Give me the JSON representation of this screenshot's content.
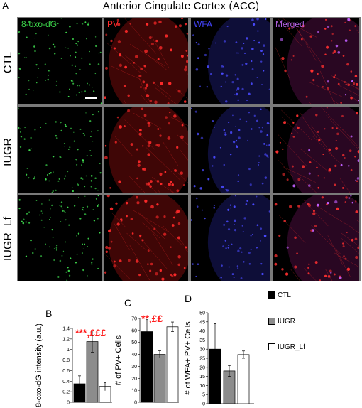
{
  "figure": {
    "panel_a_letter": "A",
    "title": "Anterior Cingulate Cortex (ACC)"
  },
  "grid": {
    "rows": [
      "CTL",
      "IUGR",
      "IUGR_Lf"
    ],
    "columns": [
      {
        "label": "8-oxo-dG",
        "color": "#3bd44a"
      },
      {
        "label": "PV",
        "color": "#ff2a2a"
      },
      {
        "label": "WFA",
        "color": "#4444ff"
      },
      {
        "label": "Merged",
        "color": "#b060e0"
      }
    ]
  },
  "legend": {
    "items": [
      {
        "label": "CTL",
        "color": "#000000"
      },
      {
        "label": "IUGR",
        "color": "#8c8c8c"
      },
      {
        "label": "IUGR_Lf",
        "color": "#ffffff"
      }
    ]
  },
  "chart_data": [
    {
      "type": "bar",
      "panel": "B",
      "categories": [
        "CTL",
        "IUGR",
        "IUGR_Lf"
      ],
      "values": [
        0.35,
        1.15,
        0.3
      ],
      "errors": [
        0.15,
        0.2,
        0.07
      ],
      "colors": [
        "#000000",
        "#8c8c8c",
        "#ffffff"
      ],
      "ylabel": "8-oxo-dG intensity (a.u.)",
      "ylim": [
        0,
        1.4
      ],
      "yticks": [
        "0",
        "0.2",
        "0.4",
        "0.6",
        "0.8",
        "1",
        "1.2",
        "1.4"
      ],
      "significance": "***,£££"
    },
    {
      "type": "bar",
      "panel": "C",
      "categories": [
        "CTL",
        "IUGR",
        "IUGR_Lf"
      ],
      "values": [
        59,
        40,
        63
      ],
      "errors": [
        10,
        3,
        4
      ],
      "colors": [
        "#000000",
        "#8c8c8c",
        "#ffffff"
      ],
      "ylabel": "# of PV+ Cells",
      "ylim": [
        0,
        70
      ],
      "yticks": [
        "0",
        "10",
        "20",
        "30",
        "40",
        "50",
        "60",
        "70"
      ],
      "significance": "**,££"
    },
    {
      "type": "bar",
      "panel": "D",
      "categories": [
        "CTL",
        "IUGR",
        "IUGR_Lf"
      ],
      "values": [
        30,
        18,
        27
      ],
      "errors": [
        14,
        3,
        2
      ],
      "colors": [
        "#000000",
        "#8c8c8c",
        "#ffffff"
      ],
      "ylabel": "# of WFA+ PV+ Cells",
      "ylim": [
        0,
        50
      ],
      "yticks": [
        "0",
        "5",
        "10",
        "15",
        "20",
        "25",
        "30",
        "35",
        "40",
        "45",
        "50"
      ],
      "significance": ""
    }
  ]
}
